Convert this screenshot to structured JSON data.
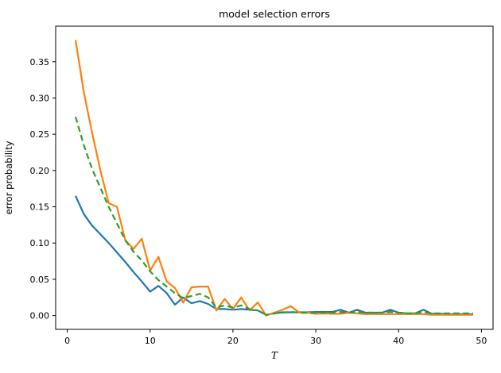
{
  "figure": {
    "title": "model selection errors",
    "xlabel": "T",
    "ylabel": "error probability"
  },
  "chart_data": {
    "type": "line",
    "title": "model selection errors",
    "xlabel": "T",
    "ylabel": "error probability",
    "legend_position": "none",
    "grid": false,
    "background_color": "#ffffff",
    "spine_color": "#000000",
    "xlim": [
      -1.4,
      51.4
    ],
    "ylim": [
      -0.019,
      0.399
    ],
    "x_ticks": [
      0,
      10,
      20,
      30,
      40,
      50
    ],
    "y_ticks": [
      0.0,
      0.05,
      0.1,
      0.15,
      0.2,
      0.25,
      0.3,
      0.35
    ],
    "x": [
      1,
      2,
      3,
      4,
      5,
      6,
      7,
      8,
      9,
      10,
      11,
      12,
      13,
      14,
      15,
      16,
      17,
      18,
      19,
      20,
      21,
      22,
      23,
      24,
      25,
      26,
      27,
      28,
      29,
      30,
      31,
      32,
      33,
      34,
      35,
      36,
      37,
      38,
      39,
      40,
      41,
      42,
      43,
      44,
      45,
      46,
      47,
      48,
      49
    ],
    "series": [
      {
        "name": "blue-solid-line",
        "color": "#1f77b4",
        "style": "solid",
        "values": [
          0.165,
          0.14,
          0.124,
          0.112,
          0.1,
          0.087,
          0.074,
          0.06,
          0.047,
          0.033,
          0.041,
          0.031,
          0.015,
          0.025,
          0.017,
          0.02,
          0.016,
          0.009,
          0.009,
          0.008,
          0.009,
          0.008,
          0.007,
          0.001,
          0.003,
          0.0045,
          0.0045,
          0.0045,
          0.0045,
          0.005,
          0.005,
          0.005,
          0.008,
          0.004,
          0.008,
          0.004,
          0.004,
          0.004,
          0.008,
          0.004,
          0.003,
          0.003,
          0.008,
          0.0025,
          0.0025,
          0.002,
          0.002,
          0.002,
          0.002
        ]
      },
      {
        "name": "orange-solid-line",
        "color": "#ff7f0e",
        "style": "solid",
        "values": [
          0.38,
          0.308,
          0.252,
          0.2,
          0.155,
          0.15,
          0.104,
          0.092,
          0.106,
          0.062,
          0.081,
          0.047,
          0.038,
          0.018,
          0.039,
          0.04,
          0.04,
          0.007,
          0.023,
          0.009,
          0.025,
          0.007,
          0.018,
          0.0,
          0.004,
          0.008,
          0.013,
          0.004,
          0.004,
          0.0025,
          0.003,
          0.0025,
          0.0025,
          0.004,
          0.003,
          0.002,
          0.002,
          0.002,
          0.002,
          0.002,
          0.002,
          0.002,
          0.002,
          0.001,
          0.001,
          0.001,
          0.001,
          0.001,
          0.001
        ]
      },
      {
        "name": "green-dashed-line",
        "color": "#2ca02c",
        "style": "dashed",
        "values": [
          0.274,
          0.235,
          0.202,
          0.176,
          0.15,
          0.127,
          0.104,
          0.088,
          0.076,
          0.061,
          0.049,
          0.04,
          0.031,
          0.024,
          0.027,
          0.03,
          0.025,
          0.011,
          0.014,
          0.011,
          0.014,
          0.009,
          0.007,
          0.001,
          0.003,
          0.004,
          0.005,
          0.004,
          0.004,
          0.004,
          0.004,
          0.004,
          0.005,
          0.004,
          0.005,
          0.004,
          0.004,
          0.004,
          0.005,
          0.004,
          0.003,
          0.003,
          0.005,
          0.003,
          0.003,
          0.003,
          0.003,
          0.003,
          0.003
        ]
      }
    ]
  }
}
